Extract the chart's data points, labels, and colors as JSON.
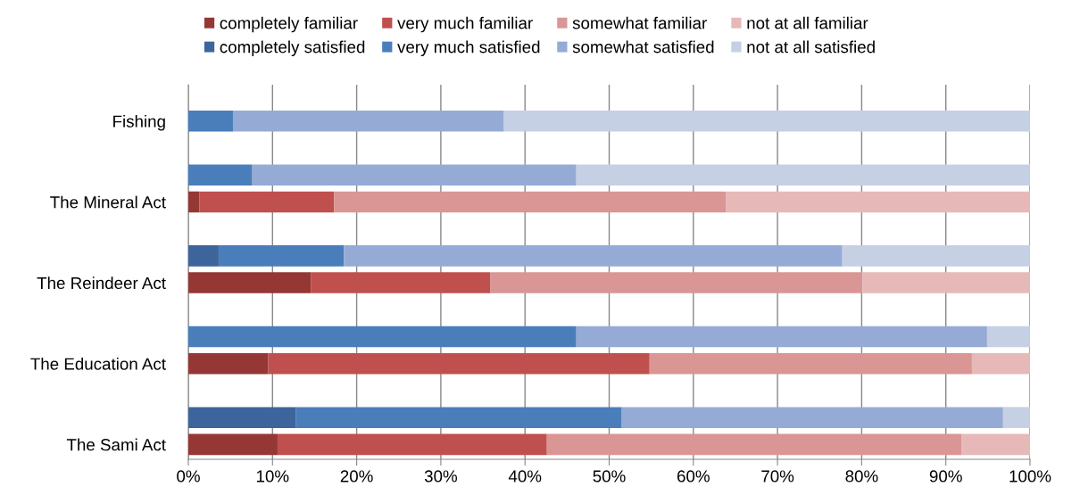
{
  "chart_data": {
    "type": "bar",
    "orientation": "horizontal",
    "stacked": true,
    "grid": "x",
    "legend": "top",
    "categories": [
      "Fishing",
      null,
      null,
      "The Mineral Act",
      null,
      null,
      "The Reindeer Act",
      null,
      null,
      "The Education Act",
      null,
      null,
      "The Sami Act"
    ],
    "xlim": [
      0,
      100
    ],
    "xticks": [
      {
        "value": 0,
        "label": "0%"
      },
      {
        "value": 10,
        "label": "10%"
      },
      {
        "value": 20,
        "label": "20%"
      },
      {
        "value": 30,
        "label": "30%"
      },
      {
        "value": 40,
        "label": "40%"
      },
      {
        "value": 50,
        "label": "50%"
      },
      {
        "value": 60,
        "label": "60%"
      },
      {
        "value": 70,
        "label": "70%"
      },
      {
        "value": 80,
        "label": "80%"
      },
      {
        "value": 90,
        "label": "90%"
      },
      {
        "value": 100,
        "label": "100%"
      }
    ],
    "series": [
      {
        "name": "completely familiar",
        "color": "#953735",
        "values": [
          null,
          null,
          null,
          1.3,
          null,
          null,
          14.6,
          null,
          null,
          9.5,
          null,
          null,
          10.6
        ]
      },
      {
        "name": "completely satisfied",
        "color": "#3d659b",
        "values": [
          0,
          null,
          null,
          null,
          null,
          3.6,
          null,
          null,
          0,
          null,
          null,
          12.8,
          null
        ]
      },
      {
        "name": "very much familiar",
        "color": "#c0504d",
        "values": [
          null,
          null,
          null,
          16.0,
          null,
          null,
          21.3,
          null,
          null,
          45.3,
          null,
          null,
          32.0
        ]
      },
      {
        "name": "very much satisfied",
        "color": "#4a7ebb",
        "values": [
          5.3,
          null,
          7.6,
          null,
          null,
          14.9,
          null,
          null,
          46.1,
          null,
          null,
          38.7,
          null
        ]
      },
      {
        "name": "somewhat familiar",
        "color": "#d99694",
        "values": [
          null,
          null,
          null,
          46.6,
          null,
          null,
          44.2,
          null,
          null,
          38.3,
          null,
          null,
          49.3
        ]
      },
      {
        "name": "somewhat satisfied",
        "color": "#95abd5",
        "values": [
          32.2,
          null,
          38.5,
          null,
          null,
          59.2,
          null,
          null,
          48.8,
          null,
          null,
          45.3,
          null
        ]
      },
      {
        "name": "not at all familiar",
        "color": "#e6b9b8",
        "values": [
          null,
          null,
          null,
          36.1,
          null,
          null,
          19.9,
          null,
          null,
          6.9,
          null,
          null,
          8.1
        ]
      },
      {
        "name": "not at all satisfied",
        "color": "#c6d0e4",
        "values": [
          62.5,
          null,
          53.9,
          null,
          null,
          22.3,
          null,
          null,
          5.1,
          null,
          null,
          3.2,
          null
        ]
      }
    ]
  }
}
